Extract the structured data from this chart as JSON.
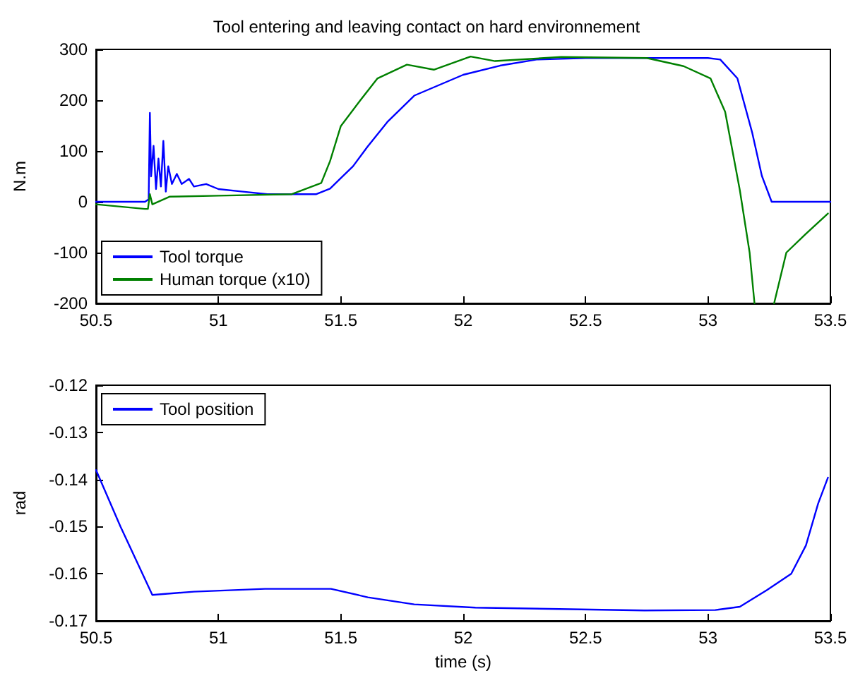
{
  "chart_data": [
    {
      "type": "line",
      "title": "Tool entering and leaving contact on hard environnement",
      "ylabel": "N.m",
      "legend": "bottom left",
      "grid": false,
      "marker": "none",
      "line_style": "solid",
      "xlim": [
        50.5,
        53.5
      ],
      "xticks": [
        50.5,
        51,
        51.5,
        52,
        52.5,
        53,
        53.5
      ],
      "ylim": [
        -200,
        300
      ],
      "yticks": [
        -200,
        -100,
        0,
        100,
        200,
        300
      ],
      "series": [
        {
          "name": "Tool torque",
          "color": "#0000ff",
          "x": [
            50.5,
            50.7,
            50.715,
            50.72,
            50.725,
            50.735,
            50.745,
            50.755,
            50.765,
            50.775,
            50.785,
            50.795,
            50.81,
            50.83,
            50.85,
            50.88,
            50.9,
            50.95,
            51.0,
            51.1,
            51.2,
            51.3,
            51.4,
            51.456,
            51.55,
            51.61,
            51.69,
            51.8,
            52.0,
            52.15,
            52.3,
            52.5,
            53.0,
            53.05,
            53.12,
            53.18,
            53.22,
            53.26,
            53.3,
            53.5
          ],
          "values": [
            0,
            0,
            5,
            175,
            50,
            110,
            25,
            85,
            30,
            120,
            20,
            70,
            35,
            55,
            35,
            45,
            30,
            35,
            25,
            20,
            15,
            15,
            15,
            26,
            70,
            109,
            157,
            209,
            250,
            268,
            280,
            283,
            283,
            280,
            243,
            137,
            51,
            0,
            0,
            0
          ]
        },
        {
          "name": "Human torque (x10)",
          "color": "#008000",
          "x": [
            50.5,
            50.7,
            50.712,
            50.72,
            50.73,
            50.8,
            51.0,
            51.3,
            51.42,
            51.456,
            51.5,
            51.58,
            51.65,
            51.77,
            51.88,
            52.03,
            52.13,
            52.4,
            52.75,
            52.9,
            53.01,
            53.07,
            53.13,
            53.17,
            53.19,
            53.23,
            53.27,
            53.32,
            53.4,
            53.49
          ],
          "values": [
            -5,
            -14,
            -14,
            15,
            -5,
            10,
            12,
            15,
            37,
            80,
            149,
            200,
            243,
            270,
            260,
            286,
            277,
            285,
            283,
            267,
            243,
            177,
            23,
            -100,
            -200,
            null,
            -200,
            -100,
            -63,
            -23
          ]
        }
      ]
    },
    {
      "type": "line",
      "xlabel": "time (s)",
      "ylabel": "rad",
      "legend": "top left",
      "grid": false,
      "marker": "none",
      "line_style": "solid",
      "xlim": [
        50.5,
        53.5
      ],
      "xticks": [
        50.5,
        51,
        51.5,
        52,
        52.5,
        53,
        53.5
      ],
      "ylim": [
        -0.17,
        -0.12
      ],
      "yticks": [
        -0.17,
        -0.16,
        -0.15,
        -0.14,
        -0.13,
        -0.12
      ],
      "series": [
        {
          "name": "Tool position",
          "color": "#0000ff",
          "x": [
            50.5,
            50.6,
            50.73,
            50.9,
            51.19,
            51.46,
            51.61,
            51.8,
            52.05,
            52.74,
            53.03,
            53.13,
            53.24,
            53.34,
            53.4,
            53.45,
            53.49
          ],
          "values": [
            -0.138,
            -0.15,
            -0.1645,
            -0.1638,
            -0.1632,
            -0.1632,
            -0.165,
            -0.1665,
            -0.1672,
            -0.1678,
            -0.1677,
            -0.167,
            -0.1635,
            -0.16,
            -0.154,
            -0.1451,
            -0.1396
          ]
        }
      ]
    }
  ]
}
